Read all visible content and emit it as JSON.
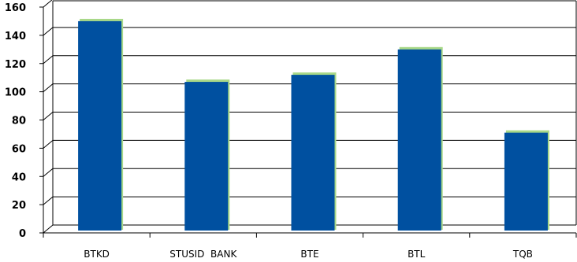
{
  "chart_data": {
    "type": "bar",
    "categories": [
      "BTKD",
      "STUSID  BANK",
      "BTE",
      "BTL",
      "TQB"
    ],
    "values": [
      150,
      107,
      112,
      130,
      71
    ],
    "ylim": [
      0,
      160
    ],
    "yticks": [
      0,
      20,
      40,
      60,
      80,
      100,
      120,
      140,
      160
    ],
    "grid": true,
    "legend": "none",
    "colors": {
      "bar": "#0050A0",
      "bar_edge": "#A8D888",
      "grid": "#000000",
      "axis": "#000000"
    }
  }
}
